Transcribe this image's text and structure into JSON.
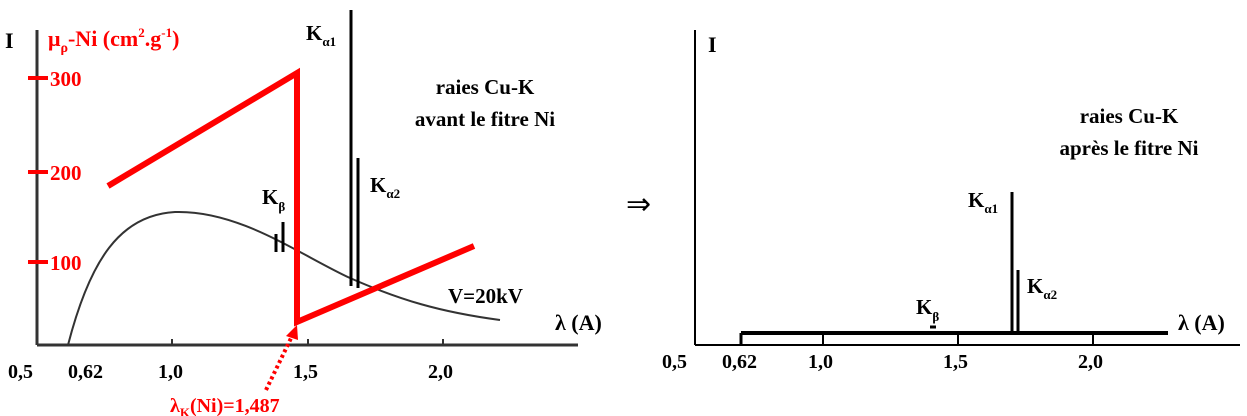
{
  "left_panel": {
    "y_axis_label": "I",
    "mu_label": {
      "main": "μ",
      "sub": "ρ",
      "mid": "-Ni (cm",
      "sup1": "2",
      "mid2": ".g",
      "sup2": "-1",
      "end": ")"
    },
    "mu_ticks": [
      "300",
      "200",
      "100"
    ],
    "x_axis_label": "λ (A)",
    "x_ticks": [
      "0,5",
      "0,62",
      "1,0",
      "1,5",
      "2,0"
    ],
    "caption_line1": "raies Cu-K",
    "caption_line2": "avant le fitre Ni",
    "voltage": "V=20kV",
    "lambda_k": {
      "main": "λ",
      "sub": "K",
      "rest": "(Ni)=1,487"
    },
    "k_alpha1": {
      "main": "K",
      "sub": "α1"
    },
    "k_alpha2": {
      "main": "K",
      "sub": "α2"
    },
    "k_beta": {
      "main": "K",
      "sub": "β"
    }
  },
  "arrow_symbol": "⇒",
  "right_panel": {
    "y_axis_label": "I",
    "x_axis_label": "λ (A)",
    "x_ticks": [
      "0,5",
      "0,62",
      "1,0",
      "1,5",
      "2,0"
    ],
    "caption_line1": "raies Cu-K",
    "caption_line2": "après le fitre Ni",
    "k_alpha1": {
      "main": "K",
      "sub": "α1"
    },
    "k_alpha2": {
      "main": "K",
      "sub": "α2"
    },
    "k_beta": {
      "main": "K",
      "sub": "β"
    }
  },
  "colors": {
    "absorption": "#ff0000",
    "spectrum": "#333333",
    "lines": "#000000"
  }
}
